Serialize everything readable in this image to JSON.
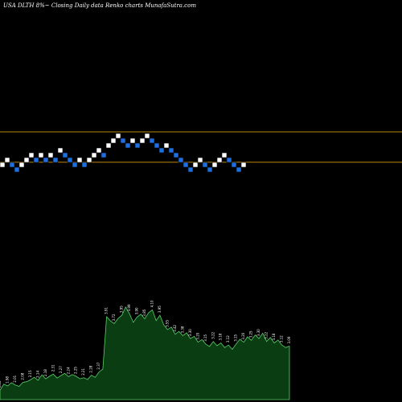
{
  "header": {
    "title": "USA DLTH 8%~  Closing Daily data  Renko  charts MunafaSutra.com"
  },
  "colors": {
    "background": "#000000",
    "up_brick": "#ffffff",
    "down_brick": "#1e6fe0",
    "brick_outline": "#000000",
    "resistance_line": "#b8860b",
    "volume_fill": "#0a3d12",
    "volume_stroke": "#5ad06a"
  },
  "chart_data": [
    {
      "type": "renko",
      "title": "USA DLTH 8%~  Closing Daily data  Renko  charts MunafaSutra.com",
      "brick_levels": [
        0,
        1,
        0,
        -1,
        0,
        1,
        2,
        1,
        2,
        1,
        2,
        1,
        3,
        2,
        1,
        0,
        1,
        0,
        1,
        2,
        3,
        2,
        4,
        5,
        6,
        5,
        4,
        5,
        4,
        5,
        6,
        5,
        4,
        3,
        4,
        3,
        2,
        1,
        0,
        -1,
        0,
        1,
        0,
        -1,
        0,
        1,
        2,
        1,
        0,
        -1,
        0
      ],
      "horizontal_lines_levels": [
        6.5,
        0.2
      ]
    },
    {
      "type": "area",
      "name": "volume",
      "values": [
        1.86,
        2.03,
        1.98,
        2.07,
        2.01,
        1.97,
        2.08,
        2.1,
        2.15,
        2.22,
        2.14,
        2.29,
        2.18,
        2.25,
        2.31,
        2.2,
        2.27,
        2.33,
        2.24,
        2.3,
        2.25,
        2.18,
        2.21,
        2.16,
        2.28,
        2.22,
        2.37,
        2.45,
        3.91,
        3.79,
        3.72,
        3.86,
        3.95,
        4.18,
        3.99,
        3.75,
        3.9,
        3.98,
        3.85,
        4.02,
        4.1,
        3.8,
        3.95,
        3.68,
        3.55,
        3.62,
        3.42,
        3.5,
        3.38,
        3.46,
        3.3,
        3.36,
        3.2,
        3.27,
        3.15,
        3.08,
        3.22,
        3.1,
        3.18,
        3.05,
        3.12,
        3.0,
        3.15,
        3.28,
        3.2,
        3.35,
        3.25,
        3.4,
        3.3,
        3.45,
        3.22,
        3.33,
        3.18,
        3.26,
        3.12,
        3.05,
        3.09
      ]
    }
  ]
}
